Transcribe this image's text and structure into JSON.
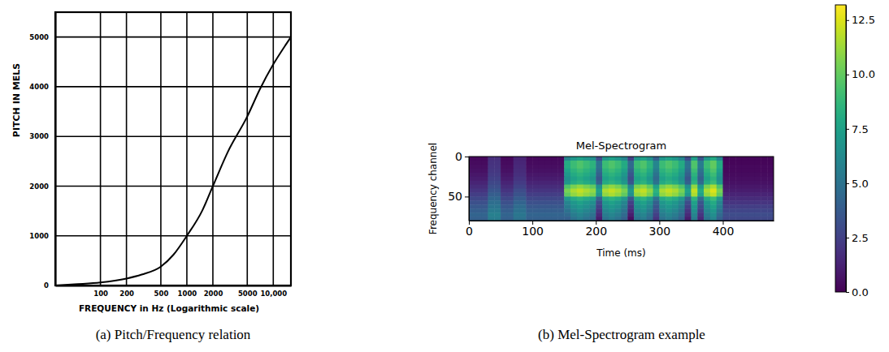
{
  "chart_data": [
    {
      "type": "line",
      "caption": "(a) Pitch/Frequency relation",
      "x_label": "FREQUENCY in Hz (Logarithmic scale)",
      "y_label": "PITCH IN MELS",
      "log": "x",
      "grid": true,
      "color": "#000000",
      "x": [
        30,
        50,
        100,
        200,
        300,
        500,
        700,
        1000,
        1500,
        2000,
        3000,
        5000,
        7000,
        10000,
        14000,
        16000
      ],
      "values": [
        0,
        25,
        60,
        140,
        220,
        380,
        620,
        1000,
        1500,
        2000,
        2700,
        3400,
        3950,
        4450,
        4850,
        5000
      ],
      "xlim": [
        30,
        16000
      ],
      "ylim": [
        0,
        5500
      ],
      "xticks": [
        100,
        200,
        500,
        1000,
        2000,
        5000,
        {
          "value": 10000,
          "label": "10,000"
        }
      ],
      "yticks": [
        0,
        1000,
        2000,
        3000,
        4000,
        5000
      ]
    },
    {
      "type": "heatmap",
      "title": "Mel-Spectrogram",
      "caption": "(b) Mel-Spectrogram example",
      "x_label": "Time (ms)",
      "y_label": "Frequency channel",
      "color": "viridis",
      "xlim": [
        0,
        480
      ],
      "ylim": [
        0,
        80
      ],
      "xticks": [
        0,
        100,
        200,
        300,
        400
      ],
      "yticks": [
        0,
        50
      ],
      "color_range": [
        0,
        13.2
      ],
      "color_ticks": [
        {
          "value": 0,
          "label": "0.0"
        },
        2.5,
        {
          "value": 5,
          "label": "5.0"
        },
        7.5,
        {
          "value": 10,
          "label": "10.0"
        },
        12.5
      ],
      "x": [
        0,
        10,
        20,
        30,
        40,
        50,
        60,
        70,
        80,
        90,
        100,
        110,
        120,
        130,
        140,
        150,
        160,
        170,
        180,
        190,
        200,
        210,
        220,
        230,
        240,
        250,
        260,
        270,
        280,
        290,
        300,
        310,
        320,
        330,
        340,
        350,
        360,
        370,
        380,
        390,
        400,
        410,
        420,
        430,
        440,
        450,
        460,
        470
      ],
      "y": [
        0,
        5,
        10,
        15,
        20,
        25,
        30,
        35,
        40,
        45,
        50,
        55,
        60,
        65,
        70,
        75
      ],
      "cells": [
        [
          0.3,
          0.3,
          0.3,
          1.8,
          1.8,
          0.3,
          0.3,
          1.3,
          1.3,
          0.3,
          0.3,
          0.3,
          0.3,
          0.3,
          0.3,
          6,
          7,
          7.5,
          7,
          6.5,
          3,
          7,
          7.5,
          7,
          6,
          2.5,
          7,
          7.5,
          6.5,
          4,
          7,
          7.5,
          7,
          6,
          3,
          7.5,
          3.5,
          7,
          8,
          6,
          0.2,
          0.2,
          0.2,
          0.2,
          0.2,
          0.2,
          0.2,
          0.2
        ],
        [
          0.4,
          0.4,
          0.4,
          1.9,
          1.9,
          0.4,
          0.4,
          1.4,
          1.4,
          0.4,
          0.4,
          0.4,
          0.4,
          0.4,
          0.4,
          8,
          9,
          9.5,
          9,
          8.5,
          5,
          9,
          9.5,
          9,
          8,
          4.5,
          9,
          9.5,
          8.5,
          6,
          9,
          9.5,
          9,
          8,
          5,
          9.5,
          5.5,
          9,
          10,
          8,
          0.2,
          0.2,
          0.2,
          0.2,
          0.2,
          0.2,
          0.2,
          0.2
        ],
        [
          0.5,
          0.5,
          0.5,
          2,
          2,
          0.5,
          0.5,
          1.5,
          1.5,
          0.5,
          0.5,
          0.5,
          0.5,
          0.5,
          0.5,
          8,
          9,
          9.5,
          9,
          8.5,
          5,
          9,
          9.5,
          9,
          8,
          4.5,
          9,
          9.5,
          8.5,
          6,
          9,
          9.5,
          9,
          8,
          5,
          9.5,
          5.5,
          9,
          10,
          8,
          0.3,
          0.3,
          0.3,
          0.3,
          0.3,
          0.3,
          0.3,
          0.3
        ],
        [
          0.6,
          0.6,
          0.6,
          2.1,
          2.1,
          0.6,
          0.6,
          1.6,
          1.6,
          0.6,
          0.6,
          0.6,
          0.6,
          0.6,
          0.6,
          7.5,
          8.5,
          9,
          8.5,
          8,
          4.5,
          8.5,
          9,
          8.5,
          7.5,
          4,
          8.5,
          9,
          8,
          5.5,
          8.5,
          9,
          8.5,
          7.5,
          4.5,
          9,
          5,
          8.5,
          9.5,
          7.5,
          0.3,
          0.3,
          0.3,
          0.3,
          0.3,
          0.3,
          0.3,
          0.3
        ],
        [
          0.8,
          0.8,
          0.8,
          2.3,
          2.3,
          0.8,
          0.8,
          1.8,
          1.8,
          0.8,
          0.8,
          0.8,
          0.8,
          0.8,
          0.8,
          7,
          8,
          8.5,
          8,
          7.5,
          4,
          8,
          8.5,
          8,
          7,
          3.5,
          8,
          8.5,
          7.5,
          5,
          8,
          8.5,
          8,
          7,
          4,
          8.5,
          4.5,
          8,
          9,
          7,
          0.4,
          0.4,
          0.4,
          0.4,
          0.4,
          0.4,
          0.4,
          0.4
        ],
        [
          1,
          1,
          1,
          2.5,
          2.5,
          1,
          1,
          2,
          2,
          1,
          1,
          1,
          1,
          1,
          1,
          6.5,
          7.5,
          8,
          7.5,
          7,
          3.5,
          7.5,
          8,
          7.5,
          6.5,
          3,
          7.5,
          8,
          7,
          4.5,
          7.5,
          8,
          7.5,
          6.5,
          3.5,
          8,
          4,
          7.5,
          8.5,
          6.5,
          0.5,
          0.5,
          0.5,
          0.5,
          0.5,
          0.5,
          0.5,
          0.5
        ],
        [
          1.3,
          1.3,
          1.3,
          2.8,
          2.8,
          1.3,
          1.3,
          2.3,
          2.3,
          1.3,
          1.3,
          1.3,
          1.3,
          1.3,
          1.3,
          7,
          8,
          8.5,
          8,
          7.5,
          4,
          8,
          8.5,
          8,
          7,
          3.5,
          8,
          8.5,
          7.5,
          5,
          8,
          8.5,
          8,
          7,
          4,
          8.5,
          4.5,
          8,
          9,
          7,
          0.6,
          0.6,
          0.6,
          0.6,
          0.6,
          0.6,
          0.6,
          0.6
        ],
        [
          1.6,
          1.6,
          1.6,
          3.1,
          3.1,
          1.6,
          1.6,
          2.6,
          2.6,
          1.6,
          1.6,
          1.6,
          1.6,
          1.6,
          1.6,
          9.5,
          10.5,
          11,
          10.5,
          10,
          6.5,
          10.5,
          11,
          10.5,
          9.5,
          6,
          10.5,
          11,
          10,
          7.5,
          10.5,
          11,
          10.5,
          9.5,
          6.5,
          11,
          7,
          10.5,
          11.5,
          9.5,
          0.8,
          0.8,
          0.8,
          0.8,
          0.8,
          0.8,
          0.8,
          0.8
        ],
        [
          2,
          2,
          2,
          3.5,
          3.5,
          2,
          2,
          3,
          3,
          2,
          2,
          2,
          2,
          2,
          2,
          10.5,
          11.5,
          12,
          11.5,
          11,
          7.5,
          11.5,
          12,
          11.5,
          10.5,
          7,
          11.5,
          12,
          11,
          8.5,
          11.5,
          12,
          11.5,
          10.5,
          7.5,
          12,
          8,
          11.5,
          12.5,
          10.5,
          1,
          1,
          1,
          1,
          1,
          1,
          1,
          1
        ],
        [
          2.4,
          2.4,
          2.4,
          3.9,
          3.9,
          2.4,
          2.4,
          3.4,
          3.4,
          2.4,
          2.4,
          2.4,
          2.4,
          2.4,
          2.4,
          10,
          11,
          11.5,
          11,
          10.5,
          7,
          11,
          11.5,
          11,
          10,
          6.5,
          11,
          11.5,
          10.5,
          8,
          11,
          11.5,
          11,
          10,
          7,
          11.5,
          7.5,
          11,
          12,
          10,
          1.3,
          1.3,
          1.3,
          1.3,
          1.3,
          1.3,
          1.3,
          1.3
        ],
        [
          2.8,
          2.8,
          2.8,
          4.3,
          4.3,
          2.8,
          2.8,
          3.8,
          3.8,
          2.8,
          2.8,
          2.8,
          2.8,
          2.8,
          2.8,
          7,
          8,
          8.5,
          8,
          7.5,
          4,
          8,
          8.5,
          8,
          7,
          3.5,
          8,
          8.5,
          7.5,
          5,
          8,
          8.5,
          8,
          7,
          4,
          8.5,
          4.5,
          8,
          9,
          7,
          1.6,
          1.6,
          1.6,
          1.6,
          1.6,
          1.6,
          1.6,
          1.6
        ],
        [
          3.2,
          3.2,
          3.2,
          4.7,
          4.7,
          3.2,
          3.2,
          4.2,
          4.2,
          3.2,
          3.2,
          3.2,
          3.2,
          3.2,
          3.2,
          6,
          7,
          7.5,
          7,
          6.5,
          3,
          7,
          7.5,
          7,
          6,
          2.5,
          7,
          7.5,
          6.5,
          4,
          7,
          7.5,
          7,
          6,
          3,
          7.5,
          3.5,
          7,
          8,
          6,
          2,
          2,
          2,
          2,
          2,
          2,
          2,
          2
        ],
        [
          3.6,
          3.6,
          3.6,
          5.1,
          5.1,
          3.6,
          3.6,
          4.6,
          4.6,
          3.6,
          3.6,
          3.6,
          3.6,
          3.6,
          3.6,
          5.5,
          6.5,
          7,
          6.5,
          6,
          2.5,
          6.5,
          7,
          6.5,
          5.5,
          2,
          6.5,
          7,
          6,
          3.5,
          6.5,
          7,
          6.5,
          5.5,
          2.5,
          7,
          3,
          6.5,
          7.5,
          5.5,
          2.4,
          2.4,
          2.4,
          2.4,
          2.4,
          2.4,
          2.4,
          2.4
        ],
        [
          3.9,
          3.9,
          3.9,
          5.4,
          5.4,
          3.9,
          3.9,
          4.9,
          4.9,
          3.9,
          3.9,
          3.9,
          3.9,
          3.9,
          3.9,
          5,
          6,
          6.5,
          6,
          5.5,
          2,
          6,
          6.5,
          6,
          5,
          1.5,
          6,
          6.5,
          5.5,
          3,
          6,
          6.5,
          6,
          5,
          2,
          6.5,
          2.5,
          6,
          7,
          5,
          2.7,
          2.7,
          2.7,
          2.7,
          2.7,
          2.7,
          2.7,
          2.7
        ],
        [
          4.2,
          4.2,
          4.2,
          5.7,
          5.7,
          4.2,
          4.2,
          5.2,
          5.2,
          4.2,
          4.2,
          4.2,
          4.2,
          4.2,
          4.2,
          4.5,
          5.5,
          6,
          5.5,
          5,
          1.5,
          5.5,
          6,
          5.5,
          4.5,
          1,
          5.5,
          6,
          5,
          2.5,
          5.5,
          6,
          5.5,
          4.5,
          1.5,
          6,
          2,
          5.5,
          6.5,
          4.5,
          3,
          3,
          3,
          3,
          3,
          3,
          3,
          3
        ],
        [
          4,
          4,
          4,
          5.5,
          5.5,
          4,
          4,
          5,
          5,
          4,
          4,
          4,
          4,
          4,
          4,
          4,
          5,
          5.5,
          5,
          4.5,
          1,
          5,
          5.5,
          5,
          4,
          0.5,
          5,
          5.5,
          4.5,
          2,
          5,
          5.5,
          5,
          4,
          1,
          5.5,
          1.5,
          5,
          6,
          4,
          2.8,
          2.8,
          2.8,
          2.8,
          2.8,
          2.8,
          2.8,
          2.8
        ]
      ]
    }
  ]
}
